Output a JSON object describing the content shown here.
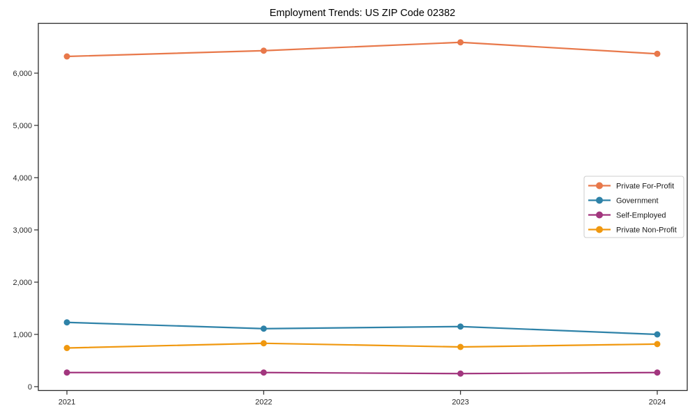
{
  "chart_data": {
    "type": "line",
    "title": "Employment Trends: US ZIP Code 02382",
    "xlabel": "",
    "ylabel": "",
    "x": [
      2021,
      2022,
      2023,
      2024
    ],
    "x_tick_labels": [
      "2021",
      "2022",
      "2023",
      "2024"
    ],
    "y_tick_values": [
      0,
      1000,
      2000,
      3000,
      4000,
      5000,
      6000
    ],
    "y_tick_labels": [
      "0",
      "1,000",
      "2,000",
      "3,000",
      "4,000",
      "5,000",
      "6,000"
    ],
    "ylim": [
      -80,
      6950
    ],
    "grid": false,
    "legend_position": "center right",
    "marker": "circle",
    "series": [
      {
        "name": "Private For-Profit",
        "color": "#E8784A",
        "values": [
          6320,
          6430,
          6590,
          6370
        ]
      },
      {
        "name": "Government",
        "color": "#2E82A8",
        "values": [
          1230,
          1110,
          1150,
          1000
        ]
      },
      {
        "name": "Self-Employed",
        "color": "#A2367E",
        "values": [
          270,
          270,
          250,
          270
        ]
      },
      {
        "name": "Private Non-Profit",
        "color": "#F0980F",
        "values": [
          740,
          830,
          760,
          815
        ]
      }
    ],
    "colors": {
      "axis": "#2b2b2b",
      "tick_text": "#262626",
      "title_text": "#000000",
      "background": "#ffffff",
      "legend_border": "#cccccc",
      "legend_background": "#ffffff"
    }
  }
}
